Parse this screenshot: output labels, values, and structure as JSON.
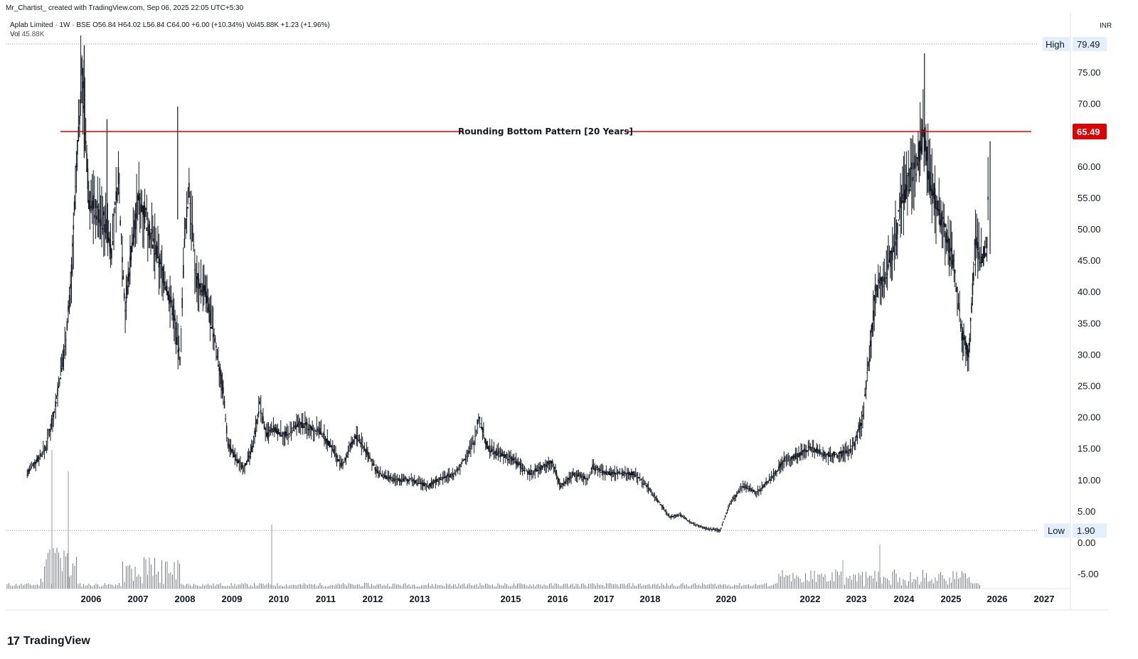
{
  "header": {
    "attribution": "Mr_Chartist_ created with TradingView.com, Sep 06, 2025 22:05 UTC+5:30"
  },
  "legend": {
    "symbol": "Aplab Limited · 1W · BSE",
    "ohlc": "O56.84 H64.02 L56.84 C64.00 +6.00 (+10.34%)",
    "volume": "Vol45.88K +1.23 (+1.96%)",
    "vol_label": "Vol",
    "vol_value": "45.88K"
  },
  "currency": "INR",
  "footer": {
    "brand": "TradingView",
    "brand_mark": "17"
  },
  "chart_data": {
    "type": "candlestick",
    "title": "Aplab Limited · 1W · BSE",
    "currency": "INR",
    "y_ticks": [
      "75.00",
      "70.00",
      "65.00",
      "60.00",
      "55.00",
      "50.00",
      "45.00",
      "40.00",
      "35.00",
      "30.00",
      "25.00",
      "20.00",
      "15.00",
      "10.00",
      "5.00",
      "0.00",
      "-5.00"
    ],
    "x_ticks": [
      "2006",
      "2007",
      "2008",
      "2009",
      "2010",
      "2011",
      "2012",
      "2013",
      "2015",
      "2016",
      "2017",
      "2018",
      "2020",
      "2022",
      "2023",
      "2024",
      "2025",
      "2026",
      "2027"
    ],
    "high_label": "High",
    "high_value": "79.49",
    "low_label": "Low",
    "low_value": "1.90",
    "level_value": "65.49",
    "level_color": "#e00000",
    "annotation": "Rounding Bottom Pattern [20 Years]",
    "price_series": [
      [
        2004.6,
        11
      ],
      [
        2005.0,
        15
      ],
      [
        2005.2,
        21
      ],
      [
        2005.4,
        30
      ],
      [
        2005.55,
        40
      ],
      [
        2005.7,
        62
      ],
      [
        2005.8,
        76
      ],
      [
        2005.95,
        55
      ],
      [
        2006.1,
        53
      ],
      [
        2006.3,
        51
      ],
      [
        2006.45,
        47
      ],
      [
        2006.6,
        58
      ],
      [
        2006.75,
        37
      ],
      [
        2006.9,
        48
      ],
      [
        2007.05,
        55
      ],
      [
        2007.2,
        52
      ],
      [
        2007.4,
        47
      ],
      [
        2007.6,
        42
      ],
      [
        2007.8,
        37
      ],
      [
        2007.95,
        29
      ],
      [
        2008.05,
        48
      ],
      [
        2008.15,
        57
      ],
      [
        2008.3,
        42
      ],
      [
        2008.5,
        40
      ],
      [
        2008.7,
        33
      ],
      [
        2008.9,
        24
      ],
      [
        2009.0,
        16
      ],
      [
        2009.2,
        13
      ],
      [
        2009.35,
        12
      ],
      [
        2009.5,
        14
      ],
      [
        2009.7,
        22
      ],
      [
        2009.85,
        17
      ],
      [
        2010.0,
        18
      ],
      [
        2010.3,
        17
      ],
      [
        2010.6,
        19
      ],
      [
        2010.9,
        18
      ],
      [
        2011.0,
        18
      ],
      [
        2011.3,
        15
      ],
      [
        2011.5,
        12
      ],
      [
        2011.8,
        17
      ],
      [
        2012.0,
        15
      ],
      [
        2012.3,
        11
      ],
      [
        2012.6,
        10
      ],
      [
        2013.0,
        10
      ],
      [
        2013.4,
        9
      ],
      [
        2013.6,
        10
      ],
      [
        2014.0,
        11
      ],
      [
        2014.4,
        16
      ],
      [
        2014.5,
        20
      ],
      [
        2014.7,
        15
      ],
      [
        2015.0,
        14
      ],
      [
        2015.3,
        13
      ],
      [
        2015.6,
        11
      ],
      [
        2015.9,
        12
      ],
      [
        2016.1,
        13
      ],
      [
        2016.3,
        9
      ],
      [
        2016.6,
        11
      ],
      [
        2016.9,
        10
      ],
      [
        2017.0,
        12
      ],
      [
        2017.3,
        11
      ],
      [
        2017.6,
        11
      ],
      [
        2017.9,
        11
      ],
      [
        2018.2,
        9
      ],
      [
        2018.5,
        6
      ],
      [
        2018.7,
        4
      ],
      [
        2018.9,
        4.5
      ],
      [
        2019.2,
        3
      ],
      [
        2019.5,
        2.2
      ],
      [
        2019.8,
        1.9
      ],
      [
        2020.0,
        6
      ],
      [
        2020.3,
        9
      ],
      [
        2020.6,
        8
      ],
      [
        2020.9,
        10
      ],
      [
        2021.2,
        13
      ],
      [
        2021.5,
        14
      ],
      [
        2021.8,
        15
      ],
      [
        2022.1,
        14
      ],
      [
        2022.4,
        14
      ],
      [
        2022.7,
        15
      ],
      [
        2022.9,
        19
      ],
      [
        2023.05,
        28
      ],
      [
        2023.2,
        40
      ],
      [
        2023.4,
        42
      ],
      [
        2023.6,
        47
      ],
      [
        2023.8,
        55
      ],
      [
        2023.95,
        58
      ],
      [
        2024.1,
        60
      ],
      [
        2024.25,
        65
      ],
      [
        2024.4,
        58
      ],
      [
        2024.6,
        52
      ],
      [
        2024.8,
        48
      ],
      [
        2024.95,
        43
      ],
      [
        2025.1,
        33
      ],
      [
        2025.25,
        30
      ],
      [
        2025.4,
        48
      ],
      [
        2025.55,
        45
      ],
      [
        2025.65,
        48
      ],
      [
        2025.7,
        64
      ]
    ],
    "volume_note": "volume histogram shown in lower pane"
  }
}
